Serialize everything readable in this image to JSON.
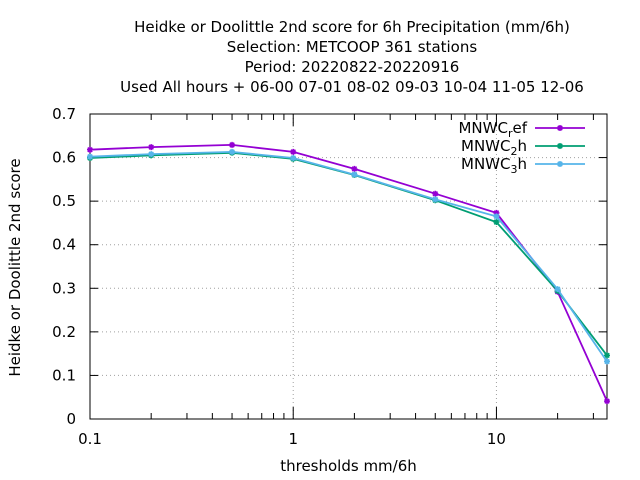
{
  "colors": {
    "MNWC_ref": "#9400d3",
    "MNWC_2h": "#009e73",
    "MNWC_3h": "#56b4e9",
    "grid": "#a0a0a0"
  },
  "chart_data": {
    "type": "line",
    "title_lines": [
      "Heidke or Doolittle 2nd score  for 6h Precipitation (mm/6h)",
      "Selection: METCOOP    361 stations",
      "Period: 20220822-20220916",
      "Used  All hours  + 06-00 07-01 08-02 09-03 10-04 11-05 12-06"
    ],
    "xlabel": "thresholds mm/6h",
    "ylabel": "Heidke or Doolittle 2nd score",
    "xscale": "log",
    "xlim": [
      0.1,
      35
    ],
    "ylim": [
      0,
      0.7
    ],
    "x_ticks": [
      0.1,
      1,
      10
    ],
    "x_tick_labels": [
      "0.1",
      "1",
      "10"
    ],
    "y_ticks": [
      0,
      0.1,
      0.2,
      0.3,
      0.4,
      0.5,
      0.6,
      0.7
    ],
    "y_tick_labels": [
      "0",
      "0.1",
      "0.2",
      "0.3",
      "0.4",
      "0.5",
      "0.6",
      "0.7"
    ],
    "grid": true,
    "legend_position": "top-right",
    "x": [
      0.1,
      0.2,
      0.5,
      1,
      2,
      5,
      10,
      20,
      35
    ],
    "series": [
      {
        "name": "MNWC_ref",
        "label_base": "MNWC",
        "label_sub": "r",
        "label_rest": "ef",
        "values": [
          0.618,
          0.624,
          0.629,
          0.613,
          0.574,
          0.517,
          0.473,
          0.292,
          0.041
        ]
      },
      {
        "name": "MNWC_2h",
        "label_base": "MNWC",
        "label_sub": "2",
        "label_rest": "h",
        "values": [
          0.599,
          0.605,
          0.611,
          0.597,
          0.56,
          0.502,
          0.452,
          0.294,
          0.146
        ]
      },
      {
        "name": "MNWC_3h",
        "label_base": "MNWC",
        "label_sub": "3",
        "label_rest": "h",
        "values": [
          0.602,
          0.608,
          0.613,
          0.599,
          0.561,
          0.504,
          0.465,
          0.298,
          0.132
        ]
      }
    ]
  }
}
